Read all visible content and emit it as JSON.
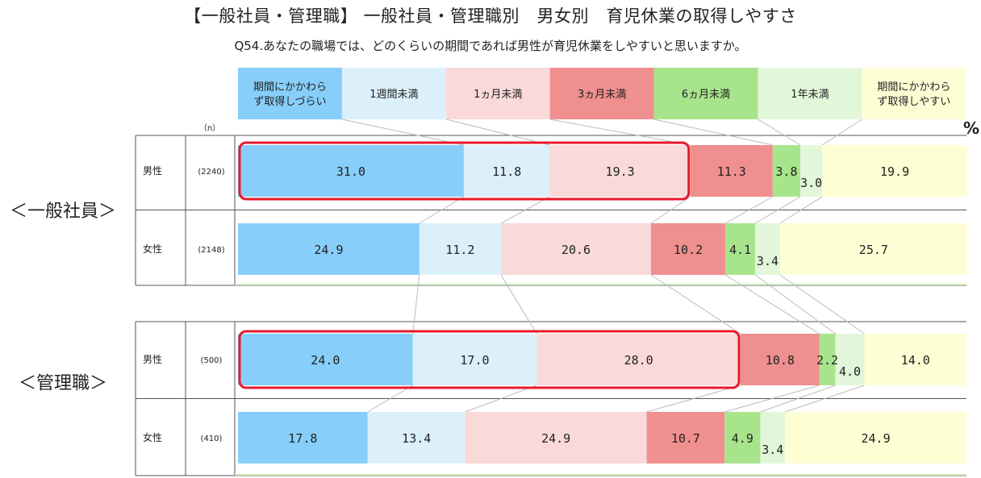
{
  "title": "【一般社員・管理職】 一般社員・管理職別　男女別　育児休業の取得しやすさ",
  "subtitle": "Q54.あなたの職場では、どのくらいの期間であれば男性が育児休業をしやすいと思いますか。",
  "n_header": "（n）",
  "percent_label": "%",
  "colors": {
    "c0": "#87CEFA",
    "c1": "#DCF0FC",
    "c2": "#FAD9D9",
    "c3": "#F08F8F",
    "c4": "#A8E48C",
    "c5": "#E2F7DA",
    "c6": "#FEFED4",
    "highlight": "#E8182A"
  },
  "chart_data": {
    "type": "bar",
    "orientation": "horizontal",
    "stacked": true,
    "xlim": [
      0,
      100
    ],
    "categories": [
      "期間にかかわらず取得しづらい",
      "1週間未満",
      "1ヵ月未満",
      "3ヵ月未満",
      "6ヵ月未満",
      "1年未満",
      "期間にかかわらず取得しやすい"
    ],
    "legend_lines": [
      [
        "期間にかかわら",
        "ず取得しづらい"
      ],
      [
        "1週間未満"
      ],
      [
        "1ヵ月未満"
      ],
      [
        "3ヵ月未満"
      ],
      [
        "6ヵ月未満"
      ],
      [
        "1年未満"
      ],
      [
        "期間にかかわら",
        "ず取得しやすい"
      ]
    ],
    "groups": [
      {
        "name": "＜一般社員＞",
        "rows": [
          {
            "label": "男性",
            "n": "(2240)",
            "values": [
              31.0,
              11.8,
              19.3,
              11.3,
              3.8,
              3.0,
              19.9
            ],
            "highlight_first": 3
          },
          {
            "label": "女性",
            "n": "(2148)",
            "values": [
              24.9,
              11.2,
              20.6,
              10.2,
              4.1,
              3.4,
              25.7
            ],
            "highlight_first": 0
          }
        ]
      },
      {
        "name": "＜管理職＞",
        "rows": [
          {
            "label": "男性",
            "n": "(500)",
            "values": [
              24.0,
              17.0,
              28.0,
              10.8,
              2.2,
              4.0,
              14.0
            ],
            "highlight_first": 3
          },
          {
            "label": "女性",
            "n": "(410)",
            "values": [
              17.8,
              13.4,
              24.9,
              10.7,
              4.9,
              3.4,
              24.9
            ],
            "highlight_first": 0
          }
        ]
      }
    ]
  }
}
